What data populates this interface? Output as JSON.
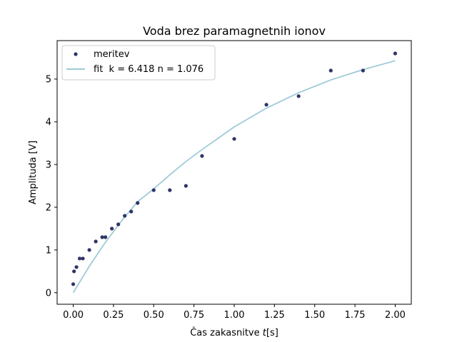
{
  "chart_data": {
    "type": "scatter",
    "title": "Voda brez paramagnetnih ionov",
    "xlabel_prefix": "Čas zakasnitve ",
    "xlabel_italic": "t",
    "xlabel_suffix": "[s]",
    "ylabel": "Amplituda [V]",
    "xlim": [
      -0.1,
      2.1
    ],
    "ylim": [
      -0.27,
      5.9
    ],
    "xticks": [
      0.0,
      0.25,
      0.5,
      0.75,
      1.0,
      1.25,
      1.5,
      1.75,
      2.0
    ],
    "xtick_labels": [
      "0.00",
      "0.25",
      "0.50",
      "0.75",
      "1.00",
      "1.25",
      "1.50",
      "1.75",
      "2.00"
    ],
    "yticks": [
      0,
      1,
      2,
      3,
      4,
      5
    ],
    "ytick_labels": [
      "0",
      "1",
      "2",
      "3",
      "4",
      "5"
    ],
    "grid": false,
    "legend_position": "top-left",
    "series": [
      {
        "name": "meritev",
        "kind": "scatter",
        "color": "#2f3566",
        "x": [
          0.0,
          0.005,
          0.02,
          0.04,
          0.06,
          0.1,
          0.14,
          0.18,
          0.2,
          0.24,
          0.28,
          0.32,
          0.36,
          0.4,
          0.5,
          0.6,
          0.7,
          0.8,
          1.0,
          1.2,
          1.4,
          1.6,
          1.8,
          2.0
        ],
        "y": [
          0.2,
          0.5,
          0.6,
          0.8,
          0.8,
          1.0,
          1.2,
          1.3,
          1.3,
          1.5,
          1.6,
          1.8,
          1.9,
          2.1,
          2.4,
          2.4,
          2.5,
          3.2,
          3.6,
          4.4,
          4.6,
          5.2,
          5.2,
          5.6
        ]
      },
      {
        "name": "fit  k = 6.418 n = 1.076",
        "kind": "line",
        "color": "#9ecad8",
        "x": [
          0.0,
          0.1,
          0.2,
          0.3,
          0.4,
          0.5,
          0.6,
          0.7,
          0.8,
          1.0,
          1.2,
          1.4,
          1.6,
          1.8,
          2.0
        ],
        "y": [
          0.0,
          0.62,
          1.18,
          1.68,
          2.13,
          2.43,
          2.76,
          3.07,
          3.35,
          3.88,
          4.32,
          4.68,
          4.98,
          5.22,
          5.43
        ]
      }
    ]
  }
}
